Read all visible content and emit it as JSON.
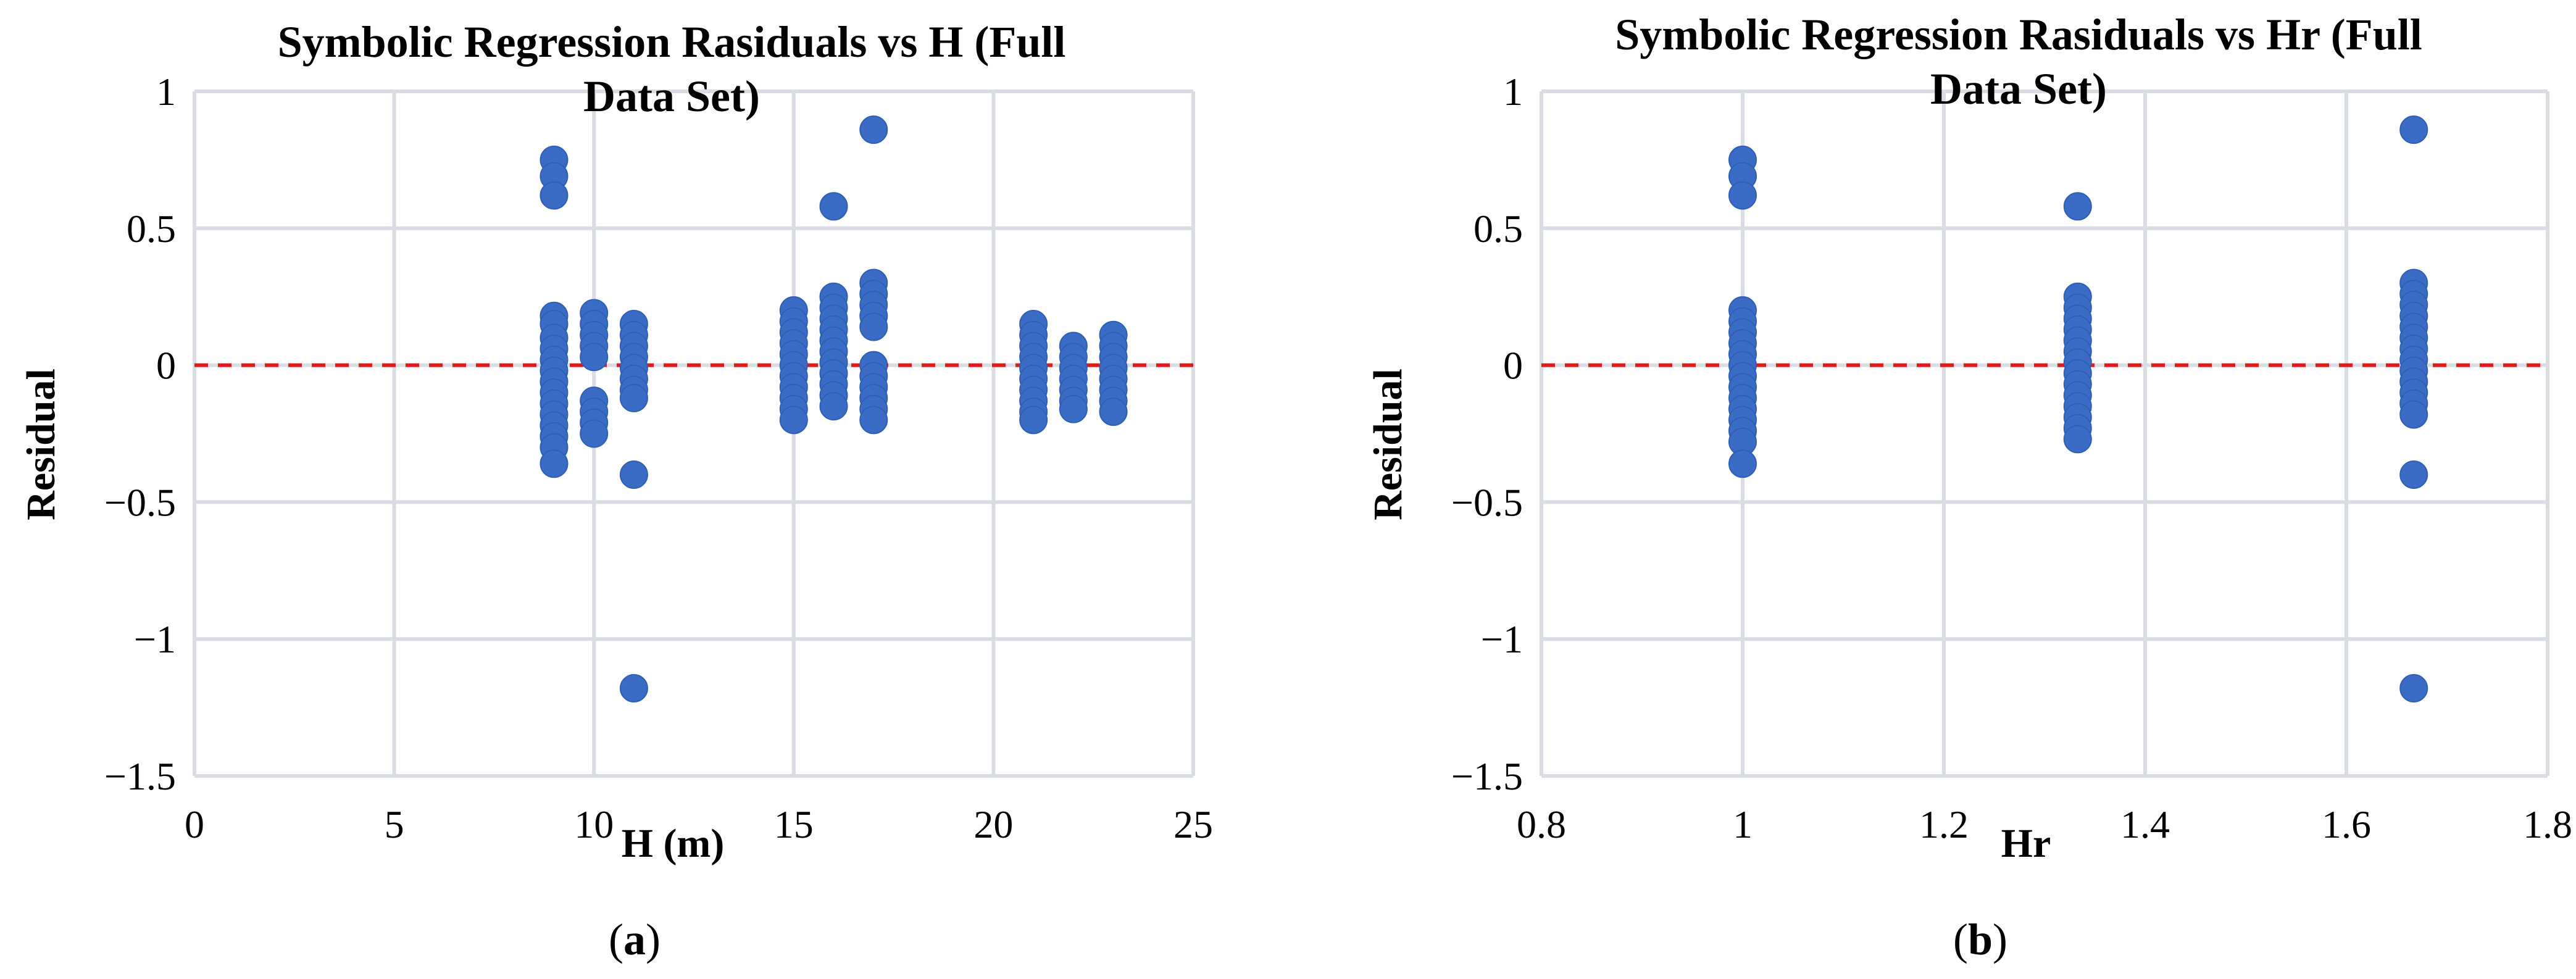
{
  "colors": {
    "point": "#3a6cc6",
    "reference_line": "#e0191b",
    "grid": "#d9dde3"
  },
  "panels": [
    {
      "label_open": "(",
      "label_letter": "a",
      "label_close": ")"
    },
    {
      "label_open": "(",
      "label_letter": "b",
      "label_close": ")"
    }
  ],
  "chart_data": [
    {
      "type": "scatter",
      "title_line1": "Symbolic Regression Rasiduals vs H (Full",
      "title_line2": "Data Set)",
      "xlabel": "H (m)",
      "ylabel": "Residual",
      "xlim": [
        0,
        25
      ],
      "ylim": [
        -1.5,
        1
      ],
      "x_ticks": [
        0,
        5,
        10,
        15,
        20,
        25
      ],
      "x_tick_labels": [
        "0",
        "5",
        "10",
        "15",
        "20",
        "25"
      ],
      "y_ticks": [
        -1.5,
        -1,
        -0.5,
        0,
        0.5,
        1
      ],
      "y_tick_labels": [
        "−1.5",
        "−1",
        "−0.5",
        "0",
        "0.5",
        "1"
      ],
      "grid": true,
      "reference_line_y": 0,
      "points": [
        {
          "x": 9,
          "y": 0.75
        },
        {
          "x": 9,
          "y": 0.69
        },
        {
          "x": 9,
          "y": 0.62
        },
        {
          "x": 9,
          "y": 0.18
        },
        {
          "x": 9,
          "y": 0.15
        },
        {
          "x": 9,
          "y": 0.1
        },
        {
          "x": 9,
          "y": 0.06
        },
        {
          "x": 9,
          "y": 0.02
        },
        {
          "x": 9,
          "y": -0.02
        },
        {
          "x": 9,
          "y": -0.06
        },
        {
          "x": 9,
          "y": -0.1
        },
        {
          "x": 9,
          "y": -0.14
        },
        {
          "x": 9,
          "y": -0.18
        },
        {
          "x": 9,
          "y": -0.22
        },
        {
          "x": 9,
          "y": -0.26
        },
        {
          "x": 9,
          "y": -0.3
        },
        {
          "x": 9,
          "y": -0.36
        },
        {
          "x": 10,
          "y": 0.19
        },
        {
          "x": 10,
          "y": 0.15
        },
        {
          "x": 10,
          "y": 0.11
        },
        {
          "x": 10,
          "y": 0.07
        },
        {
          "x": 10,
          "y": 0.03
        },
        {
          "x": 10,
          "y": -0.13
        },
        {
          "x": 10,
          "y": -0.17
        },
        {
          "x": 10,
          "y": -0.21
        },
        {
          "x": 10,
          "y": -0.25
        },
        {
          "x": 11,
          "y": 0.15
        },
        {
          "x": 11,
          "y": 0.11
        },
        {
          "x": 11,
          "y": 0.07
        },
        {
          "x": 11,
          "y": 0.03
        },
        {
          "x": 11,
          "y": -0.01
        },
        {
          "x": 11,
          "y": -0.05
        },
        {
          "x": 11,
          "y": -0.09
        },
        {
          "x": 11,
          "y": -0.12
        },
        {
          "x": 11,
          "y": -0.4
        },
        {
          "x": 11,
          "y": -1.18
        },
        {
          "x": 15,
          "y": 0.2
        },
        {
          "x": 15,
          "y": 0.16
        },
        {
          "x": 15,
          "y": 0.12
        },
        {
          "x": 15,
          "y": 0.08
        },
        {
          "x": 15,
          "y": 0.04
        },
        {
          "x": 15,
          "y": 0
        },
        {
          "x": 15,
          "y": -0.04
        },
        {
          "x": 15,
          "y": -0.08
        },
        {
          "x": 15,
          "y": -0.12
        },
        {
          "x": 15,
          "y": -0.16
        },
        {
          "x": 15,
          "y": -0.2
        },
        {
          "x": 16,
          "y": 0.58
        },
        {
          "x": 16,
          "y": 0.25
        },
        {
          "x": 16,
          "y": 0.21
        },
        {
          "x": 16,
          "y": 0.17
        },
        {
          "x": 16,
          "y": 0.13
        },
        {
          "x": 16,
          "y": 0.09
        },
        {
          "x": 16,
          "y": 0.05
        },
        {
          "x": 16,
          "y": 0.01
        },
        {
          "x": 16,
          "y": -0.03
        },
        {
          "x": 16,
          "y": -0.07
        },
        {
          "x": 16,
          "y": -0.11
        },
        {
          "x": 16,
          "y": -0.15
        },
        {
          "x": 17,
          "y": 0.86
        },
        {
          "x": 17,
          "y": 0.3
        },
        {
          "x": 17,
          "y": 0.26
        },
        {
          "x": 17,
          "y": 0.22
        },
        {
          "x": 17,
          "y": 0.18
        },
        {
          "x": 17,
          "y": 0.14
        },
        {
          "x": 17,
          "y": 0
        },
        {
          "x": 17,
          "y": -0.04
        },
        {
          "x": 17,
          "y": -0.08
        },
        {
          "x": 17,
          "y": -0.12
        },
        {
          "x": 17,
          "y": -0.16
        },
        {
          "x": 17,
          "y": -0.2
        },
        {
          "x": 21,
          "y": 0.15
        },
        {
          "x": 21,
          "y": 0.11
        },
        {
          "x": 21,
          "y": 0.07
        },
        {
          "x": 21,
          "y": 0.03
        },
        {
          "x": 21,
          "y": -0.01
        },
        {
          "x": 21,
          "y": -0.05
        },
        {
          "x": 21,
          "y": -0.09
        },
        {
          "x": 21,
          "y": -0.13
        },
        {
          "x": 21,
          "y": -0.17
        },
        {
          "x": 21,
          "y": -0.2
        },
        {
          "x": 22,
          "y": 0.07
        },
        {
          "x": 22,
          "y": 0.03
        },
        {
          "x": 22,
          "y": -0.01
        },
        {
          "x": 22,
          "y": -0.05
        },
        {
          "x": 22,
          "y": -0.09
        },
        {
          "x": 22,
          "y": -0.13
        },
        {
          "x": 22,
          "y": -0.16
        },
        {
          "x": 23,
          "y": 0.11
        },
        {
          "x": 23,
          "y": 0.07
        },
        {
          "x": 23,
          "y": 0.03
        },
        {
          "x": 23,
          "y": -0.01
        },
        {
          "x": 23,
          "y": -0.05
        },
        {
          "x": 23,
          "y": -0.09
        },
        {
          "x": 23,
          "y": -0.13
        },
        {
          "x": 23,
          "y": -0.17
        }
      ]
    },
    {
      "type": "scatter",
      "title_line1": "Symbolic Regression Rasiduals vs Hr (Full",
      "title_line2": "Data Set)",
      "xlabel": "Hr",
      "ylabel": "Residual",
      "xlim": [
        0.8,
        1.8
      ],
      "ylim": [
        -1.5,
        1
      ],
      "x_ticks": [
        0.8,
        1,
        1.2,
        1.4,
        1.6,
        1.8
      ],
      "x_tick_labels": [
        "0.8",
        "1",
        "1.2",
        "1.4",
        "1.6",
        "1.8"
      ],
      "y_ticks": [
        -1.5,
        -1,
        -0.5,
        0,
        0.5,
        1
      ],
      "y_tick_labels": [
        "−1.5",
        "−1",
        "−0.5",
        "0",
        "0.5",
        "1"
      ],
      "grid": true,
      "reference_line_y": 0,
      "points": [
        {
          "x": 1,
          "y": 0.75
        },
        {
          "x": 1,
          "y": 0.69
        },
        {
          "x": 1,
          "y": 0.62
        },
        {
          "x": 1,
          "y": 0.2
        },
        {
          "x": 1,
          "y": 0.16
        },
        {
          "x": 1,
          "y": 0.12
        },
        {
          "x": 1,
          "y": 0.08
        },
        {
          "x": 1,
          "y": 0.04
        },
        {
          "x": 1,
          "y": 0
        },
        {
          "x": 1,
          "y": -0.04
        },
        {
          "x": 1,
          "y": -0.08
        },
        {
          "x": 1,
          "y": -0.12
        },
        {
          "x": 1,
          "y": -0.16
        },
        {
          "x": 1,
          "y": -0.2
        },
        {
          "x": 1,
          "y": -0.24
        },
        {
          "x": 1,
          "y": -0.28
        },
        {
          "x": 1,
          "y": -0.36
        },
        {
          "x": 1.333,
          "y": 0.58
        },
        {
          "x": 1.333,
          "y": 0.25
        },
        {
          "x": 1.333,
          "y": 0.21
        },
        {
          "x": 1.333,
          "y": 0.17
        },
        {
          "x": 1.333,
          "y": 0.13
        },
        {
          "x": 1.333,
          "y": 0.09
        },
        {
          "x": 1.333,
          "y": 0.05
        },
        {
          "x": 1.333,
          "y": 0.01
        },
        {
          "x": 1.333,
          "y": -0.03
        },
        {
          "x": 1.333,
          "y": -0.07
        },
        {
          "x": 1.333,
          "y": -0.11
        },
        {
          "x": 1.333,
          "y": -0.15
        },
        {
          "x": 1.333,
          "y": -0.19
        },
        {
          "x": 1.333,
          "y": -0.23
        },
        {
          "x": 1.333,
          "y": -0.27
        },
        {
          "x": 1.667,
          "y": 0.86
        },
        {
          "x": 1.667,
          "y": 0.3
        },
        {
          "x": 1.667,
          "y": 0.26
        },
        {
          "x": 1.667,
          "y": 0.22
        },
        {
          "x": 1.667,
          "y": 0.18
        },
        {
          "x": 1.667,
          "y": 0.14
        },
        {
          "x": 1.667,
          "y": 0.1
        },
        {
          "x": 1.667,
          "y": 0.06
        },
        {
          "x": 1.667,
          "y": 0.02
        },
        {
          "x": 1.667,
          "y": -0.02
        },
        {
          "x": 1.667,
          "y": -0.06
        },
        {
          "x": 1.667,
          "y": -0.1
        },
        {
          "x": 1.667,
          "y": -0.14
        },
        {
          "x": 1.667,
          "y": -0.18
        },
        {
          "x": 1.667,
          "y": -0.4
        },
        {
          "x": 1.667,
          "y": -1.18
        }
      ]
    }
  ]
}
